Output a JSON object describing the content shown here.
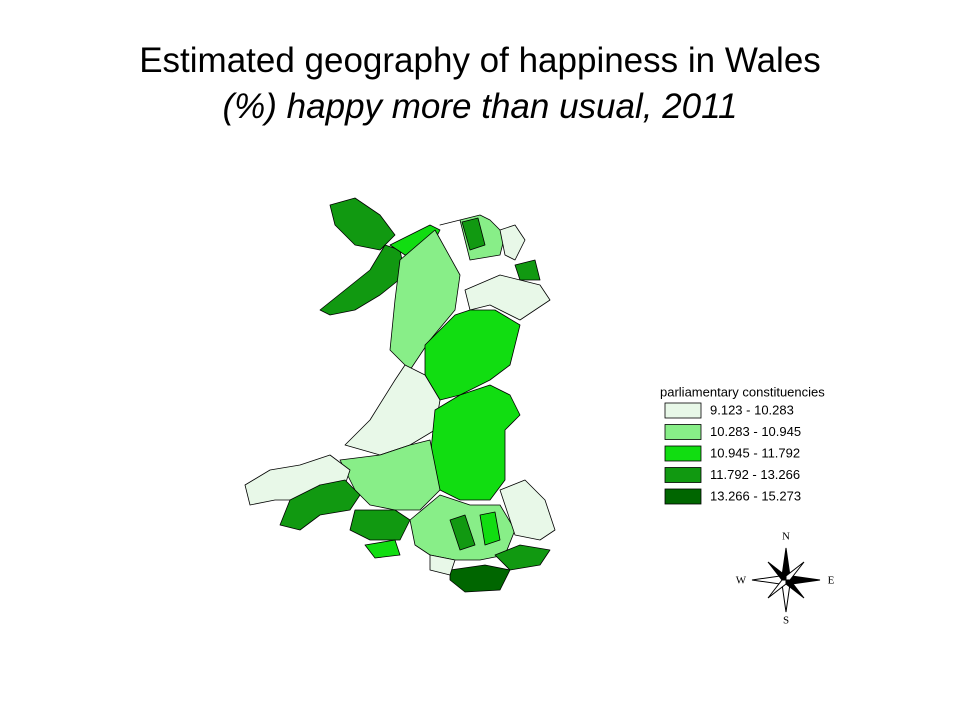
{
  "title": "Estimated geography of happiness in Wales",
  "subtitle": "(%) happy more than usual, 2011",
  "legend": {
    "title": "parliamentary constituencies",
    "classes": [
      {
        "label": "9.123 - 10.283",
        "color": "#e8f8e8"
      },
      {
        "label": "10.283 - 10.945",
        "color": "#88ee88"
      },
      {
        "label": "10.945 - 11.792",
        "color": "#11dd11"
      },
      {
        "label": "11.792 - 13.266",
        "color": "#119911"
      },
      {
        "label": "13.266 - 15.273",
        "color": "#006600"
      }
    ]
  },
  "compass": {
    "north": "N",
    "south": "S",
    "east": "E",
    "west": "W"
  }
}
